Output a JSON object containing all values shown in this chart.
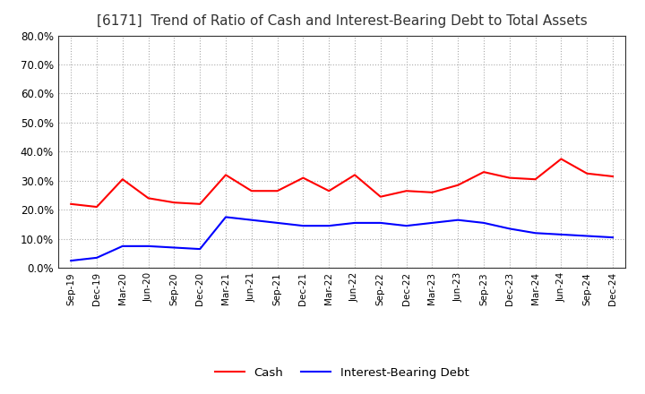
{
  "title": "[6171]  Trend of Ratio of Cash and Interest-Bearing Debt to Total Assets",
  "x_labels": [
    "Sep-19",
    "Dec-19",
    "Mar-20",
    "Jun-20",
    "Sep-20",
    "Dec-20",
    "Mar-21",
    "Jun-21",
    "Sep-21",
    "Dec-21",
    "Mar-22",
    "Jun-22",
    "Sep-22",
    "Dec-22",
    "Mar-23",
    "Jun-23",
    "Sep-23",
    "Dec-23",
    "Mar-24",
    "Jun-24",
    "Sep-24",
    "Dec-24"
  ],
  "cash": [
    0.22,
    0.21,
    0.305,
    0.24,
    0.225,
    0.22,
    0.32,
    0.265,
    0.265,
    0.31,
    0.265,
    0.32,
    0.245,
    0.265,
    0.26,
    0.285,
    0.33,
    0.31,
    0.305,
    0.375,
    0.325,
    0.315
  ],
  "interest_bearing_debt": [
    0.025,
    0.035,
    0.075,
    0.075,
    0.07,
    0.065,
    0.175,
    0.165,
    0.155,
    0.145,
    0.145,
    0.155,
    0.155,
    0.145,
    0.155,
    0.165,
    0.155,
    0.135,
    0.12,
    0.115,
    0.11,
    0.105
  ],
  "ylim": [
    0.0,
    0.8
  ],
  "yticks": [
    0.0,
    0.1,
    0.2,
    0.3,
    0.4,
    0.5,
    0.6,
    0.7,
    0.8
  ],
  "cash_color": "#ff0000",
  "debt_color": "#0000ff",
  "grid_color": "#aaaaaa",
  "background_color": "#ffffff",
  "title_fontsize": 11,
  "legend_labels": [
    "Cash",
    "Interest-Bearing Debt"
  ]
}
